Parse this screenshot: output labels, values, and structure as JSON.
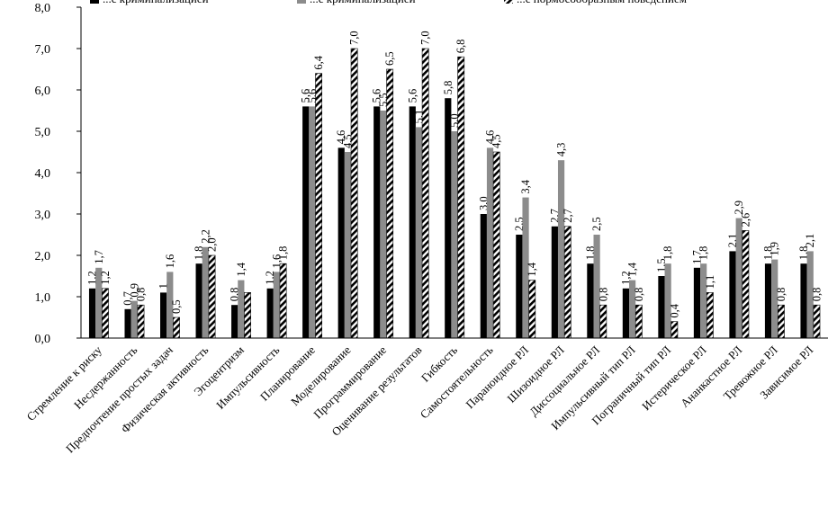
{
  "chart_data": {
    "type": "bar",
    "categories": [
      "Стремление к риску",
      "Несдержанность",
      "Предпочтение простых задач",
      "Физическая активность",
      "Эгоцентризм",
      "Импульсивность",
      "Планирование",
      "Моделирование",
      "Программирование",
      "Оценивание результатов",
      "Гибкость",
      "Самостоятельность",
      "Параноидное РЛ",
      "Шизоидное РЛ",
      "Диссоциальное РЛ",
      "Импульсивный тип РЛ",
      "Пограничный тип РЛ",
      "Истерическое РЛ",
      "Ананкастное РЛ",
      "Тревожное РЛ",
      "Зависимое РЛ"
    ],
    "series": [
      {
        "name": "...с криминализацией",
        "color": "#000000",
        "pattern": "solid",
        "values": [
          1.2,
          0.7,
          1.1,
          1.8,
          0.8,
          1.2,
          5.6,
          4.6,
          5.6,
          5.6,
          5.8,
          3.0,
          2.5,
          2.7,
          1.8,
          1.2,
          1.5,
          1.7,
          2.1,
          1.8,
          1.8
        ],
        "labels": [
          "1,2",
          "0,7",
          "1",
          "1,8",
          "0,8",
          "1,2",
          "5,6",
          "4,6",
          "5,6",
          "5,6",
          "5,8",
          "3,0",
          "2,5",
          "2,7",
          "1,8",
          "1,2",
          "1,5",
          "1,7",
          "2,1",
          "1,8",
          "1,8"
        ]
      },
      {
        "name": "...с криминализацией",
        "color": "#8c8c8c",
        "pattern": "solid",
        "values": [
          1.7,
          0.9,
          1.6,
          2.2,
          1.4,
          1.6,
          5.6,
          4.5,
          5.5,
          5.1,
          5.0,
          4.6,
          3.4,
          4.3,
          2.5,
          1.4,
          1.8,
          1.8,
          2.9,
          1.9,
          2.1
        ],
        "labels": [
          "1,7",
          "0,9",
          "1,6",
          "2,2",
          "1,4",
          "1,6",
          "5,6",
          "4,5",
          "5,5",
          "5,1",
          "5,0",
          "4,6",
          "3,4",
          "4,3",
          "2,5",
          "1,4",
          "1,8",
          "1,8",
          "2,9",
          "1,9",
          "2,1"
        ]
      },
      {
        "name": "...с нормосообразным поведением",
        "color": "#000000",
        "pattern": "hatched",
        "values": [
          1.2,
          0.8,
          0.5,
          2.0,
          1.1,
          1.8,
          6.4,
          7.0,
          6.5,
          7.0,
          6.8,
          4.5,
          1.4,
          2.7,
          0.8,
          0.8,
          0.4,
          1.1,
          2.6,
          0.8,
          0.8
        ],
        "labels": [
          "1,2",
          "0,8",
          "0,5",
          "2,0",
          "",
          "1,8",
          "6,4",
          "7,0",
          "6,5",
          "7,0",
          "6,8",
          "4,5",
          "1,4",
          "2,7",
          "0,8",
          "0,8",
          "0,4",
          "1,1",
          "2,6",
          "0,8",
          "0,8"
        ]
      }
    ],
    "yticks": [
      "0,0",
      "1,0",
      "2,0",
      "3,0",
      "4,0",
      "5,0",
      "6,0",
      "7,0",
      "8,0"
    ],
    "ylim": [
      0,
      8
    ],
    "grid": false,
    "legend_placement": "top",
    "title": "",
    "xlabel": "",
    "ylabel": ""
  }
}
